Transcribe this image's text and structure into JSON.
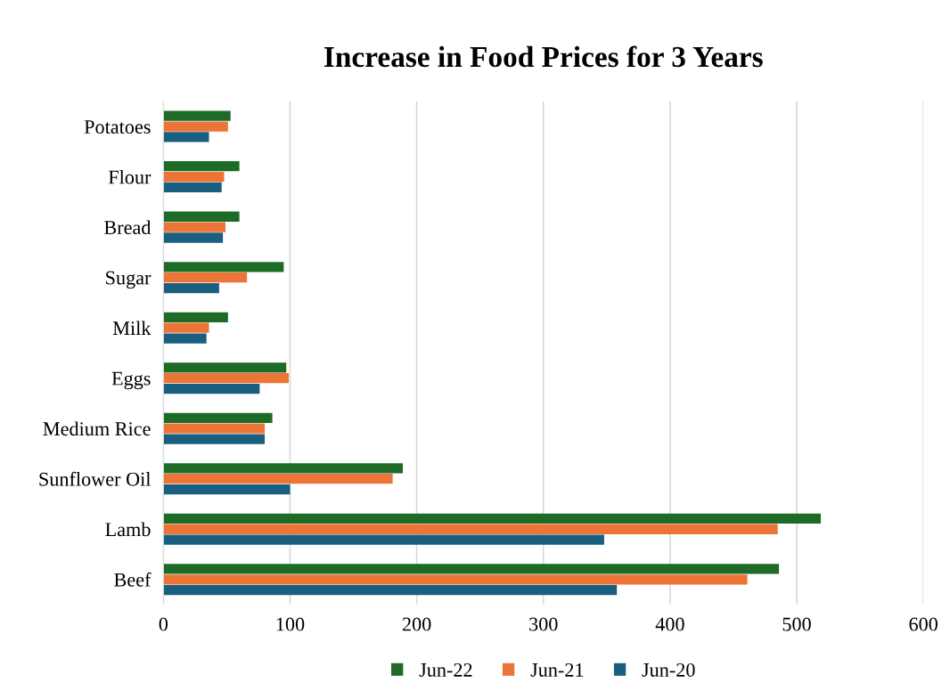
{
  "chart_data": {
    "type": "bar",
    "orientation": "horizontal",
    "title": "Increase in Food Prices for 3 Years",
    "categories": [
      "Potatoes",
      "Flour",
      "Bread",
      "Sugar",
      "Milk",
      "Eggs",
      "Medium Rice",
      "Sunflower Oil",
      "Lamb",
      "Beef"
    ],
    "series": [
      {
        "name": "Jun-22",
        "color": "#1d6b26",
        "values": [
          53,
          60,
          60,
          95,
          51,
          97,
          86,
          189,
          519,
          486
        ]
      },
      {
        "name": "Jun-21",
        "color": "#ec7436",
        "values": [
          51,
          48,
          49,
          66,
          36,
          99,
          80,
          181,
          485,
          461
        ]
      },
      {
        "name": "Jun-20",
        "color": "#1a5e80",
        "values": [
          36,
          46,
          47,
          44,
          34,
          76,
          80,
          100,
          348,
          358
        ]
      }
    ],
    "xlim": [
      0,
      600
    ],
    "xticks": [
      0,
      100,
      200,
      300,
      400,
      500,
      600
    ],
    "grid": "x",
    "legend": "bottom"
  }
}
